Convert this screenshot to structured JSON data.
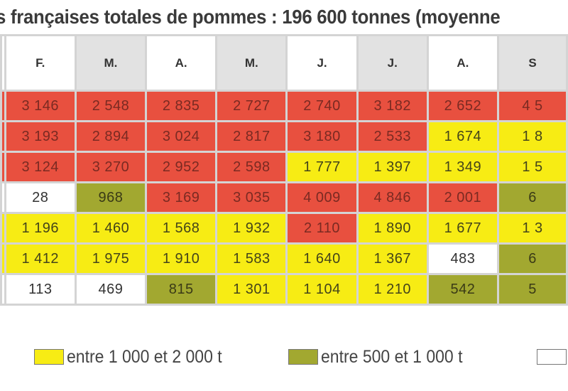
{
  "title": "s françaises totales de pommes : 196 600 tonnes (moyenne",
  "colors": {
    "red": "#e8503f",
    "yellow": "#f7ec14",
    "olive": "#a2a830",
    "white": "#ffffff",
    "header_shade": "#e2e2e2"
  },
  "chart_data": {
    "type": "table",
    "columns": [
      "F.",
      "M.",
      "A.",
      "M.",
      "J.",
      "J.",
      "A.",
      "S"
    ],
    "header_shaded": [
      false,
      true,
      false,
      true,
      false,
      true,
      false,
      true
    ],
    "rows": [
      {
        "cells": [
          {
            "text": "3 146",
            "color": "red"
          },
          {
            "text": "2 548",
            "color": "red"
          },
          {
            "text": "2 835",
            "color": "red"
          },
          {
            "text": "2 727",
            "color": "red"
          },
          {
            "text": "2 740",
            "color": "red"
          },
          {
            "text": "3 182",
            "color": "red"
          },
          {
            "text": "2 652",
            "color": "red"
          },
          {
            "text": "4 5",
            "color": "red"
          }
        ]
      },
      {
        "cells": [
          {
            "text": "3 193",
            "color": "red"
          },
          {
            "text": "2 894",
            "color": "red"
          },
          {
            "text": "3 024",
            "color": "red"
          },
          {
            "text": "2 817",
            "color": "red"
          },
          {
            "text": "3 180",
            "color": "red"
          },
          {
            "text": "2 533",
            "color": "red"
          },
          {
            "text": "1 674",
            "color": "yellow"
          },
          {
            "text": "1 8",
            "color": "yellow"
          }
        ]
      },
      {
        "cells": [
          {
            "text": "3 124",
            "color": "red"
          },
          {
            "text": "3 270",
            "color": "red"
          },
          {
            "text": "2 952",
            "color": "red"
          },
          {
            "text": "2 598",
            "color": "red"
          },
          {
            "text": "1 777",
            "color": "yellow"
          },
          {
            "text": "1 397",
            "color": "yellow"
          },
          {
            "text": "1 349",
            "color": "yellow"
          },
          {
            "text": "1 5",
            "color": "yellow"
          }
        ]
      },
      {
        "cells": [
          {
            "text": "28",
            "color": "white"
          },
          {
            "text": "968",
            "color": "olive"
          },
          {
            "text": "3 169",
            "color": "red"
          },
          {
            "text": "3 035",
            "color": "red"
          },
          {
            "text": "4 009",
            "color": "red"
          },
          {
            "text": "4 846",
            "color": "red"
          },
          {
            "text": "2 001",
            "color": "red"
          },
          {
            "text": "6",
            "color": "olive"
          }
        ]
      },
      {
        "cells": [
          {
            "text": "1 196",
            "color": "yellow"
          },
          {
            "text": "1 460",
            "color": "yellow"
          },
          {
            "text": "1 568",
            "color": "yellow"
          },
          {
            "text": "1 932",
            "color": "yellow"
          },
          {
            "text": "2 110",
            "color": "red"
          },
          {
            "text": "1 890",
            "color": "yellow"
          },
          {
            "text": "1 677",
            "color": "yellow"
          },
          {
            "text": "1 3",
            "color": "yellow"
          }
        ]
      },
      {
        "cells": [
          {
            "text": "1 412",
            "color": "yellow"
          },
          {
            "text": "1 975",
            "color": "yellow"
          },
          {
            "text": "1 910",
            "color": "yellow"
          },
          {
            "text": "1 583",
            "color": "yellow"
          },
          {
            "text": "1 640",
            "color": "yellow"
          },
          {
            "text": "1 367",
            "color": "yellow"
          },
          {
            "text": "483",
            "color": "white"
          },
          {
            "text": "6",
            "color": "olive"
          }
        ]
      },
      {
        "cells": [
          {
            "text": "113",
            "color": "white"
          },
          {
            "text": "469",
            "color": "white"
          },
          {
            "text": "815",
            "color": "olive"
          },
          {
            "text": "1 301",
            "color": "yellow"
          },
          {
            "text": "1 104",
            "color": "yellow"
          },
          {
            "text": "1 210",
            "color": "yellow"
          },
          {
            "text": "542",
            "color": "olive"
          },
          {
            "text": "5",
            "color": "olive"
          }
        ]
      }
    ]
  },
  "legend": [
    {
      "label": "entre 1 000 et 2 000 t",
      "color": "yellow"
    },
    {
      "label": "entre 500 et 1 000 t",
      "color": "olive"
    },
    {
      "label": "",
      "color": "white"
    }
  ]
}
